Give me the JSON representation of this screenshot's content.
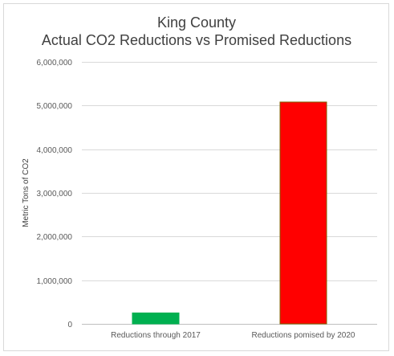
{
  "chart_data": {
    "type": "bar",
    "title": [
      "King County",
      "Actual CO2 Reductions vs Promised Reductions"
    ],
    "xlabel": "",
    "ylabel": "Metric Tons of CO2",
    "categories": [
      "Reductions through 2017",
      "Reductions pomised by 2020"
    ],
    "values": [
      250000,
      5080000
    ],
    "bar_colors": [
      "#00b050",
      "#ff0000"
    ],
    "bar_outline_colors": [
      "#00b050",
      "#7f6000"
    ],
    "ylim": [
      0,
      6000000
    ],
    "yticks": [
      0,
      1000000,
      2000000,
      3000000,
      4000000,
      5000000,
      6000000
    ],
    "ytick_labels": [
      "0",
      "1,000,000",
      "2,000,000",
      "3,000,000",
      "4,000,000",
      "5,000,000",
      "6,000,000"
    ],
    "grid": true,
    "legend": "none"
  }
}
